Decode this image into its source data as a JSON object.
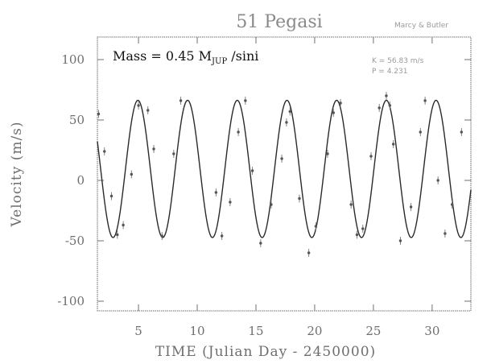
{
  "chart_data": {
    "type": "scatter",
    "title": "51 Pegasi",
    "credit": "Marcy & Butler",
    "annotation": {
      "mass_prefix": "Mass = 0.45 M",
      "mass_sub": "JUP",
      "mass_suffix": " /sini"
    },
    "legend": [
      "K = 56.83 m/s",
      "P = 4.231"
    ],
    "xlabel": "TIME  (Julian Day - 2450000)",
    "ylabel": "Velocity  (m/s)",
    "xlim": [
      1.5,
      33.3
    ],
    "ylim": [
      -100,
      100
    ],
    "xticks": [
      5,
      10,
      15,
      20,
      25,
      30
    ],
    "yticks": [
      100,
      50,
      0,
      -50,
      -100
    ],
    "ytick_labels": [
      "100",
      "50",
      "0",
      "-50",
      "-100"
    ],
    "model_curve": {
      "amplitude": 56.8,
      "offset": 9.5,
      "period": 4.231,
      "phase_peak_day": 4.95
    },
    "series": [
      {
        "x": [
          1.6,
          2.1,
          2.7,
          3.2,
          3.7,
          4.4,
          5.0,
          5.8,
          6.3,
          7.0,
          8.0,
          8.6,
          11.6,
          12.1,
          12.8,
          13.5,
          14.1,
          14.7,
          15.4,
          16.3,
          17.2,
          17.6,
          17.9,
          18.7,
          19.5,
          20.1,
          21.1,
          21.6,
          22.2,
          23.1,
          23.6,
          24.1,
          24.8,
          25.5,
          26.1,
          26.4,
          26.7,
          27.3,
          28.2,
          29.0,
          29.4,
          30.5,
          31.1,
          31.7,
          32.5
        ],
        "y": [
          55,
          24,
          -13,
          -45,
          -37,
          5,
          62,
          58,
          26,
          -46,
          22,
          66,
          -10,
          -46,
          -18,
          40,
          66,
          8,
          -52,
          -20,
          18,
          48,
          57,
          -15,
          -60,
          -38,
          22,
          56,
          64,
          -20,
          -45,
          -40,
          20,
          60,
          70,
          62,
          30,
          -50,
          -22,
          40,
          66,
          0,
          -44,
          -20,
          40
        ]
      }
    ]
  }
}
